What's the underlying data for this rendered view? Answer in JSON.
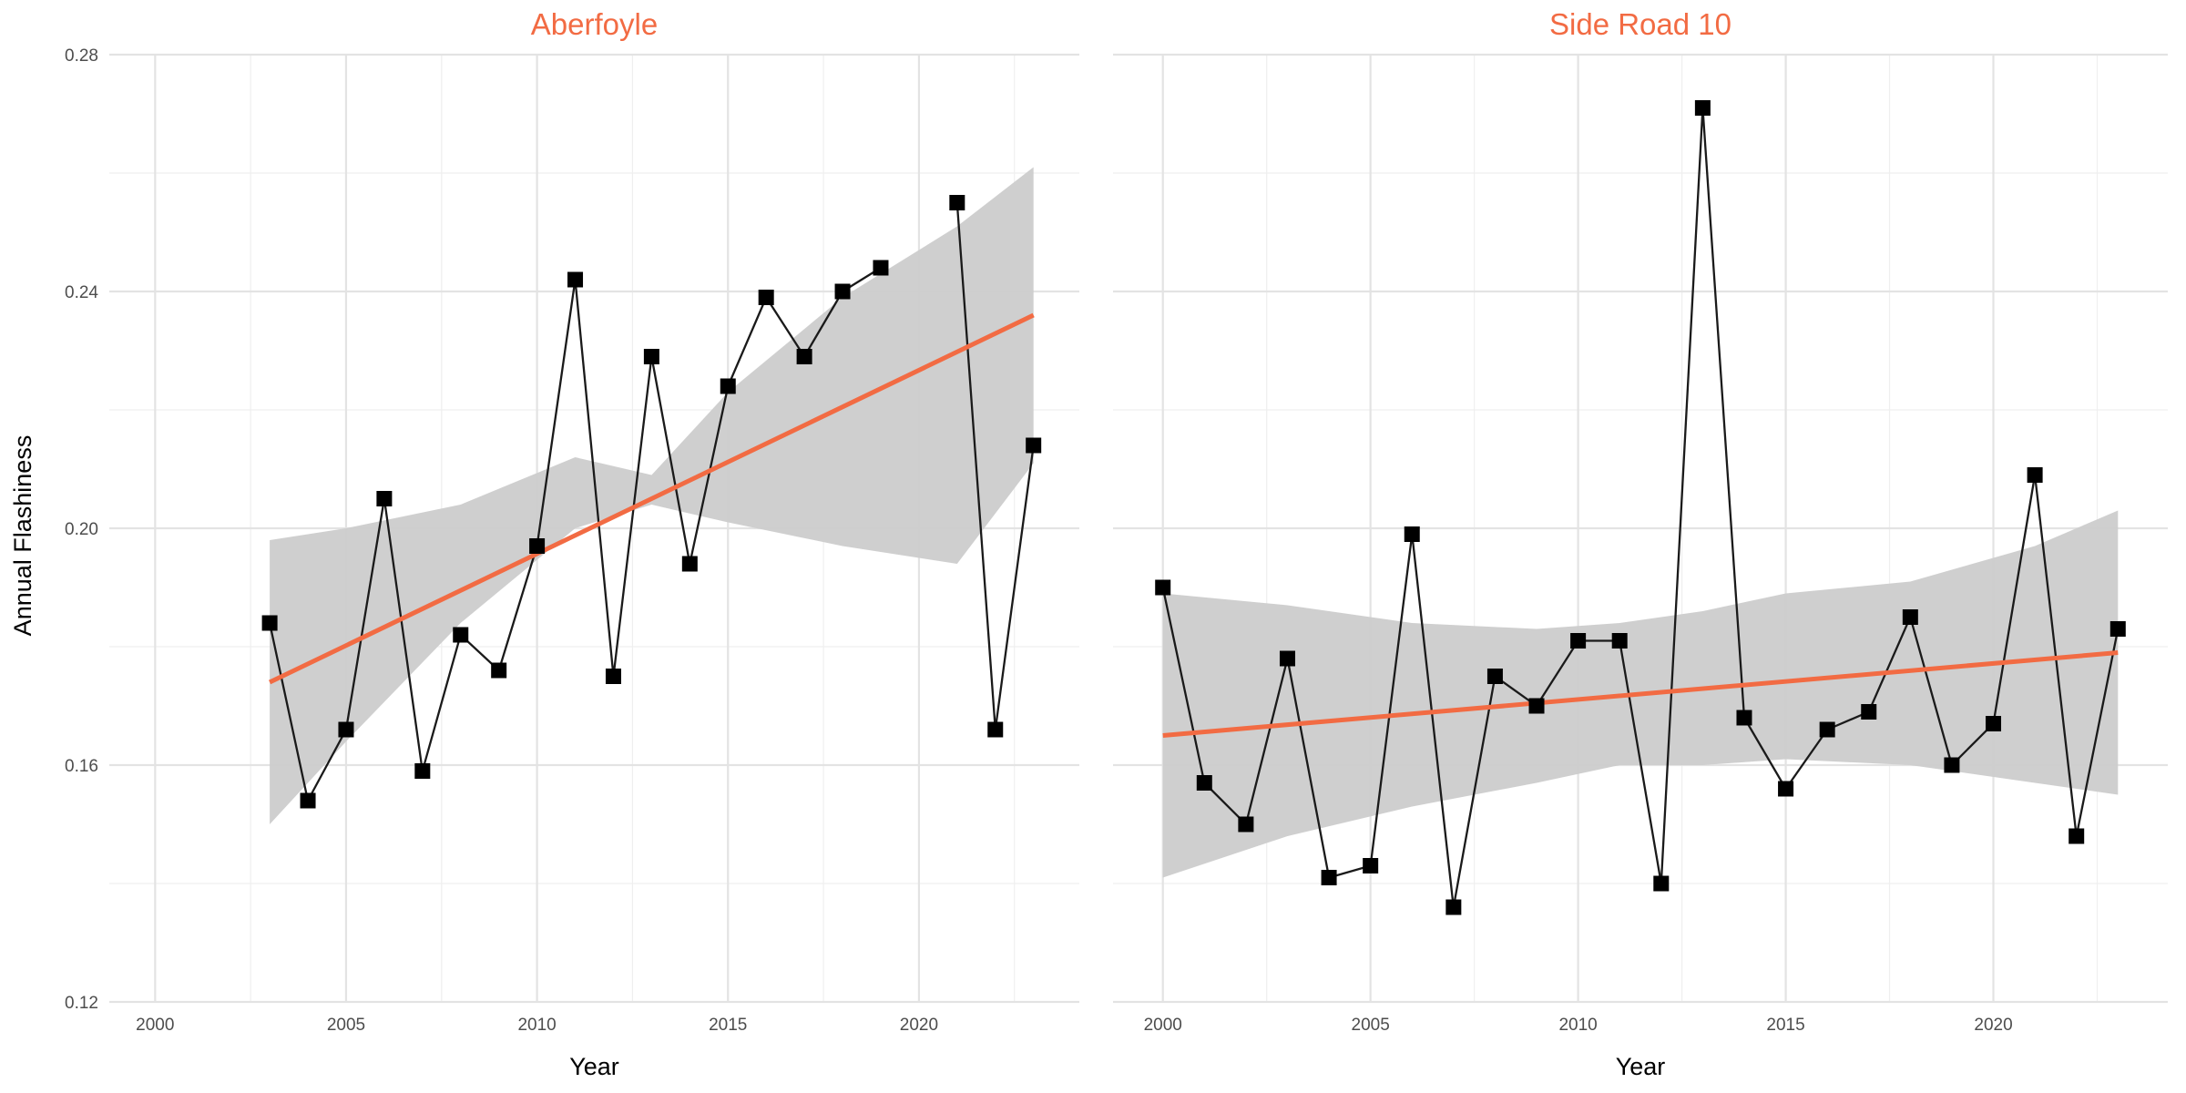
{
  "ylabel": "Annual Flashiness",
  "colors": {
    "trend": "#f26b43",
    "band": "#cccccc",
    "points": "#000000",
    "line": "#1a1a1a",
    "title": "#f26b43"
  },
  "chart_data": [
    {
      "type": "line",
      "title": "Aberfoyle",
      "xlabel": "Year",
      "ylabel": "Annual Flashiness",
      "xlim": [
        1998.8,
        2024.2
      ],
      "ylim": [
        0.12,
        0.28
      ],
      "xticks": [
        2000,
        2005,
        2010,
        2015,
        2020
      ],
      "yticks": [
        0.12,
        0.16,
        0.2,
        0.24,
        0.28
      ],
      "ytick_labels": [
        "0.12",
        "0.16",
        "0.20",
        "0.24",
        "0.28"
      ],
      "grid": true,
      "series": [
        {
          "points": [
            [
              2003,
              0.184
            ],
            [
              2004,
              0.154
            ],
            [
              2005,
              0.166
            ],
            [
              2006,
              0.205
            ],
            [
              2007,
              0.159
            ],
            [
              2008,
              0.182
            ],
            [
              2009,
              0.176
            ],
            [
              2010,
              0.197
            ],
            [
              2011,
              0.242
            ],
            [
              2012,
              0.175
            ],
            [
              2013,
              0.229
            ],
            [
              2014,
              0.194
            ],
            [
              2015,
              0.224
            ],
            [
              2016,
              0.239
            ],
            [
              2017,
              0.229
            ],
            [
              2018,
              0.24
            ],
            [
              2019,
              0.244
            ],
            [
              2021,
              0.255
            ],
            [
              2022,
              0.166
            ],
            [
              2023,
              0.214
            ]
          ]
        }
      ],
      "trend": {
        "x": [
          2003,
          2023
        ],
        "y": [
          0.174,
          0.236
        ]
      },
      "band": {
        "x": [
          2003,
          2005,
          2008,
          2011,
          2013,
          2015,
          2018,
          2021,
          2023
        ],
        "lower": [
          0.15,
          0.164,
          0.184,
          0.2,
          0.204,
          0.201,
          0.197,
          0.194,
          0.211
        ],
        "upper": [
          0.198,
          0.2,
          0.204,
          0.212,
          0.209,
          0.223,
          0.239,
          0.251,
          0.261
        ]
      }
    },
    {
      "type": "line",
      "title": "Side Road 10",
      "xlabel": "Year",
      "ylabel": "",
      "xlim": [
        1998.8,
        2024.2
      ],
      "ylim": [
        0.12,
        0.28
      ],
      "xticks": [
        2000,
        2005,
        2010,
        2015,
        2020
      ],
      "yticks": [
        0.12,
        0.16,
        0.2,
        0.24,
        0.28
      ],
      "grid": true,
      "series": [
        {
          "points": [
            [
              2000,
              0.19
            ],
            [
              2001,
              0.157
            ],
            [
              2002,
              0.15
            ],
            [
              2003,
              0.178
            ],
            [
              2004,
              0.141
            ],
            [
              2005,
              0.143
            ],
            [
              2006,
              0.199
            ],
            [
              2007,
              0.136
            ],
            [
              2008,
              0.175
            ],
            [
              2009,
              0.17
            ],
            [
              2010,
              0.181
            ],
            [
              2011,
              0.181
            ],
            [
              2012,
              0.14
            ],
            [
              2013,
              0.271
            ],
            [
              2014,
              0.168
            ],
            [
              2015,
              0.156
            ],
            [
              2016,
              0.166
            ],
            [
              2017,
              0.169
            ],
            [
              2018,
              0.185
            ],
            [
              2019,
              0.16
            ],
            [
              2020,
              0.167
            ],
            [
              2021,
              0.209
            ],
            [
              2022,
              0.148
            ],
            [
              2023,
              0.183
            ]
          ]
        }
      ],
      "trend": {
        "x": [
          2000,
          2023
        ],
        "y": [
          0.165,
          0.179
        ]
      },
      "band": {
        "x": [
          2000,
          2003,
          2006,
          2009,
          2011,
          2013,
          2015,
          2018,
          2021,
          2023
        ],
        "lower": [
          0.141,
          0.148,
          0.153,
          0.157,
          0.16,
          0.16,
          0.161,
          0.16,
          0.157,
          0.155
        ],
        "upper": [
          0.189,
          0.187,
          0.184,
          0.183,
          0.184,
          0.186,
          0.189,
          0.191,
          0.197,
          0.203
        ]
      }
    }
  ]
}
